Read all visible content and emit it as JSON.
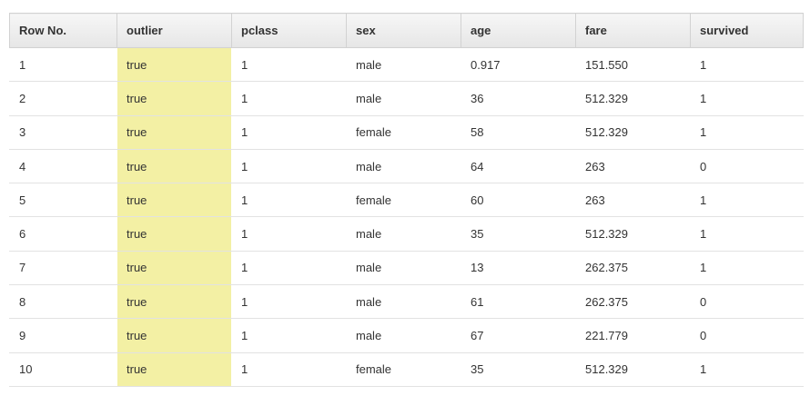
{
  "table": {
    "columns": [
      "Row No.",
      "outlier",
      "pclass",
      "sex",
      "age",
      "fare",
      "survived"
    ],
    "rows": [
      [
        "1",
        "true",
        "1",
        "male",
        "0.917",
        "151.550",
        "1"
      ],
      [
        "2",
        "true",
        "1",
        "male",
        "36",
        "512.329",
        "1"
      ],
      [
        "3",
        "true",
        "1",
        "female",
        "58",
        "512.329",
        "1"
      ],
      [
        "4",
        "true",
        "1",
        "male",
        "64",
        "263",
        "0"
      ],
      [
        "5",
        "true",
        "1",
        "female",
        "60",
        "263",
        "1"
      ],
      [
        "6",
        "true",
        "1",
        "male",
        "35",
        "512.329",
        "1"
      ],
      [
        "7",
        "true",
        "1",
        "male",
        "13",
        "262.375",
        "1"
      ],
      [
        "8",
        "true",
        "1",
        "male",
        "61",
        "262.375",
        "0"
      ],
      [
        "9",
        "true",
        "1",
        "male",
        "67",
        "221.779",
        "0"
      ],
      [
        "10",
        "true",
        "1",
        "female",
        "35",
        "512.329",
        "1"
      ]
    ],
    "highlight_color": "#f3f0a4"
  }
}
